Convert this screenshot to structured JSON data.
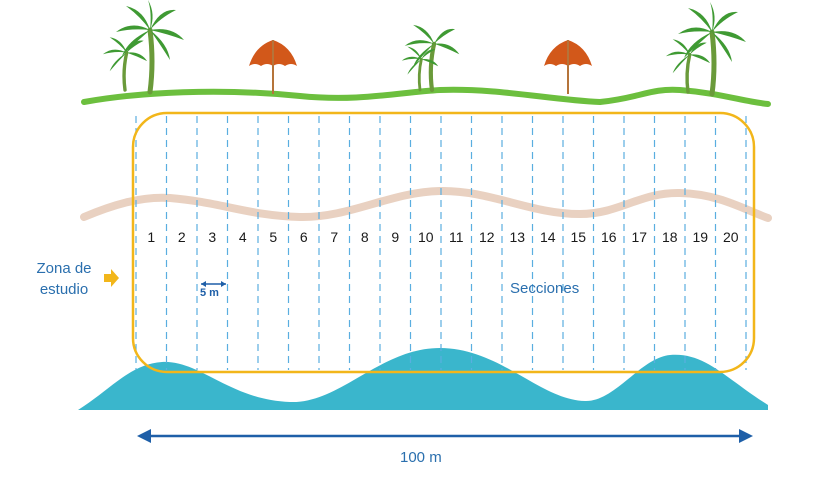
{
  "diagram": {
    "zone_label_line1": "Zona de",
    "zone_label_line2": "estudio",
    "sections_label": "Secciones",
    "spacing_label": "5 m",
    "total_length_label": "100 m",
    "section_numbers": [
      "1",
      "2",
      "3",
      "4",
      "5",
      "6",
      "7",
      "8",
      "9",
      "10",
      "11",
      "12",
      "13",
      "14",
      "15",
      "16",
      "17",
      "18",
      "19",
      "20"
    ]
  },
  "colors": {
    "grass": "#6cbf3e",
    "sand_line": "#e9d1c1",
    "water": "#3ab6cc",
    "zone_border": "#f2b61a",
    "section_lines": "#5aaee0",
    "arrow": "#1e5fa8",
    "umbrella": "#d2581a",
    "palm_leaf": "#3f9a33",
    "palm_trunk": "#6a9a3a"
  },
  "icons": [
    "palm-tree-icon",
    "beach-umbrella-icon",
    "pointer-arrow-icon"
  ]
}
